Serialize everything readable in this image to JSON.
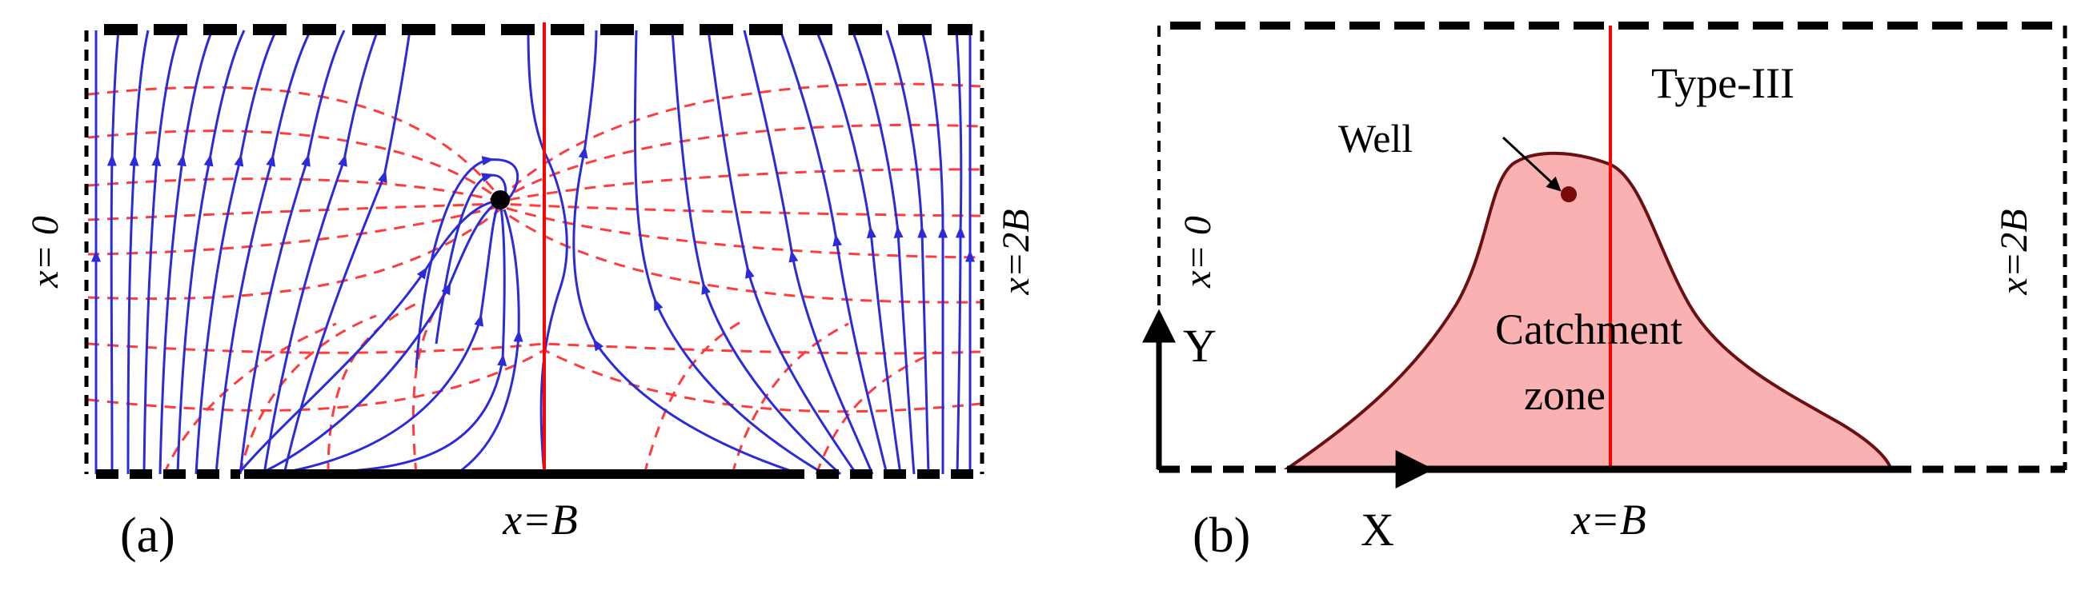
{
  "panel_a": {
    "tag": "(a)",
    "label_left": "x= 0",
    "label_right": "x=2B",
    "label_bottom": "x=B"
  },
  "panel_b": {
    "tag": "(b)",
    "type_label": "Type-III",
    "well_label": "Well",
    "zone_label_line1": "Catchment",
    "zone_label_line2": "zone",
    "label_left": "x= 0",
    "label_right": "x=2B",
    "label_bottom": "x=B",
    "axis_x": "X",
    "axis_y": "Y"
  },
  "colors": {
    "streamline": "#2b2bd9",
    "equipotential": "#ff3b3b",
    "midline": "#ff0000",
    "zone_fill": "#f9b1b1",
    "zone_edge": "#6b1010",
    "well_dot": "#7a0a0a"
  }
}
